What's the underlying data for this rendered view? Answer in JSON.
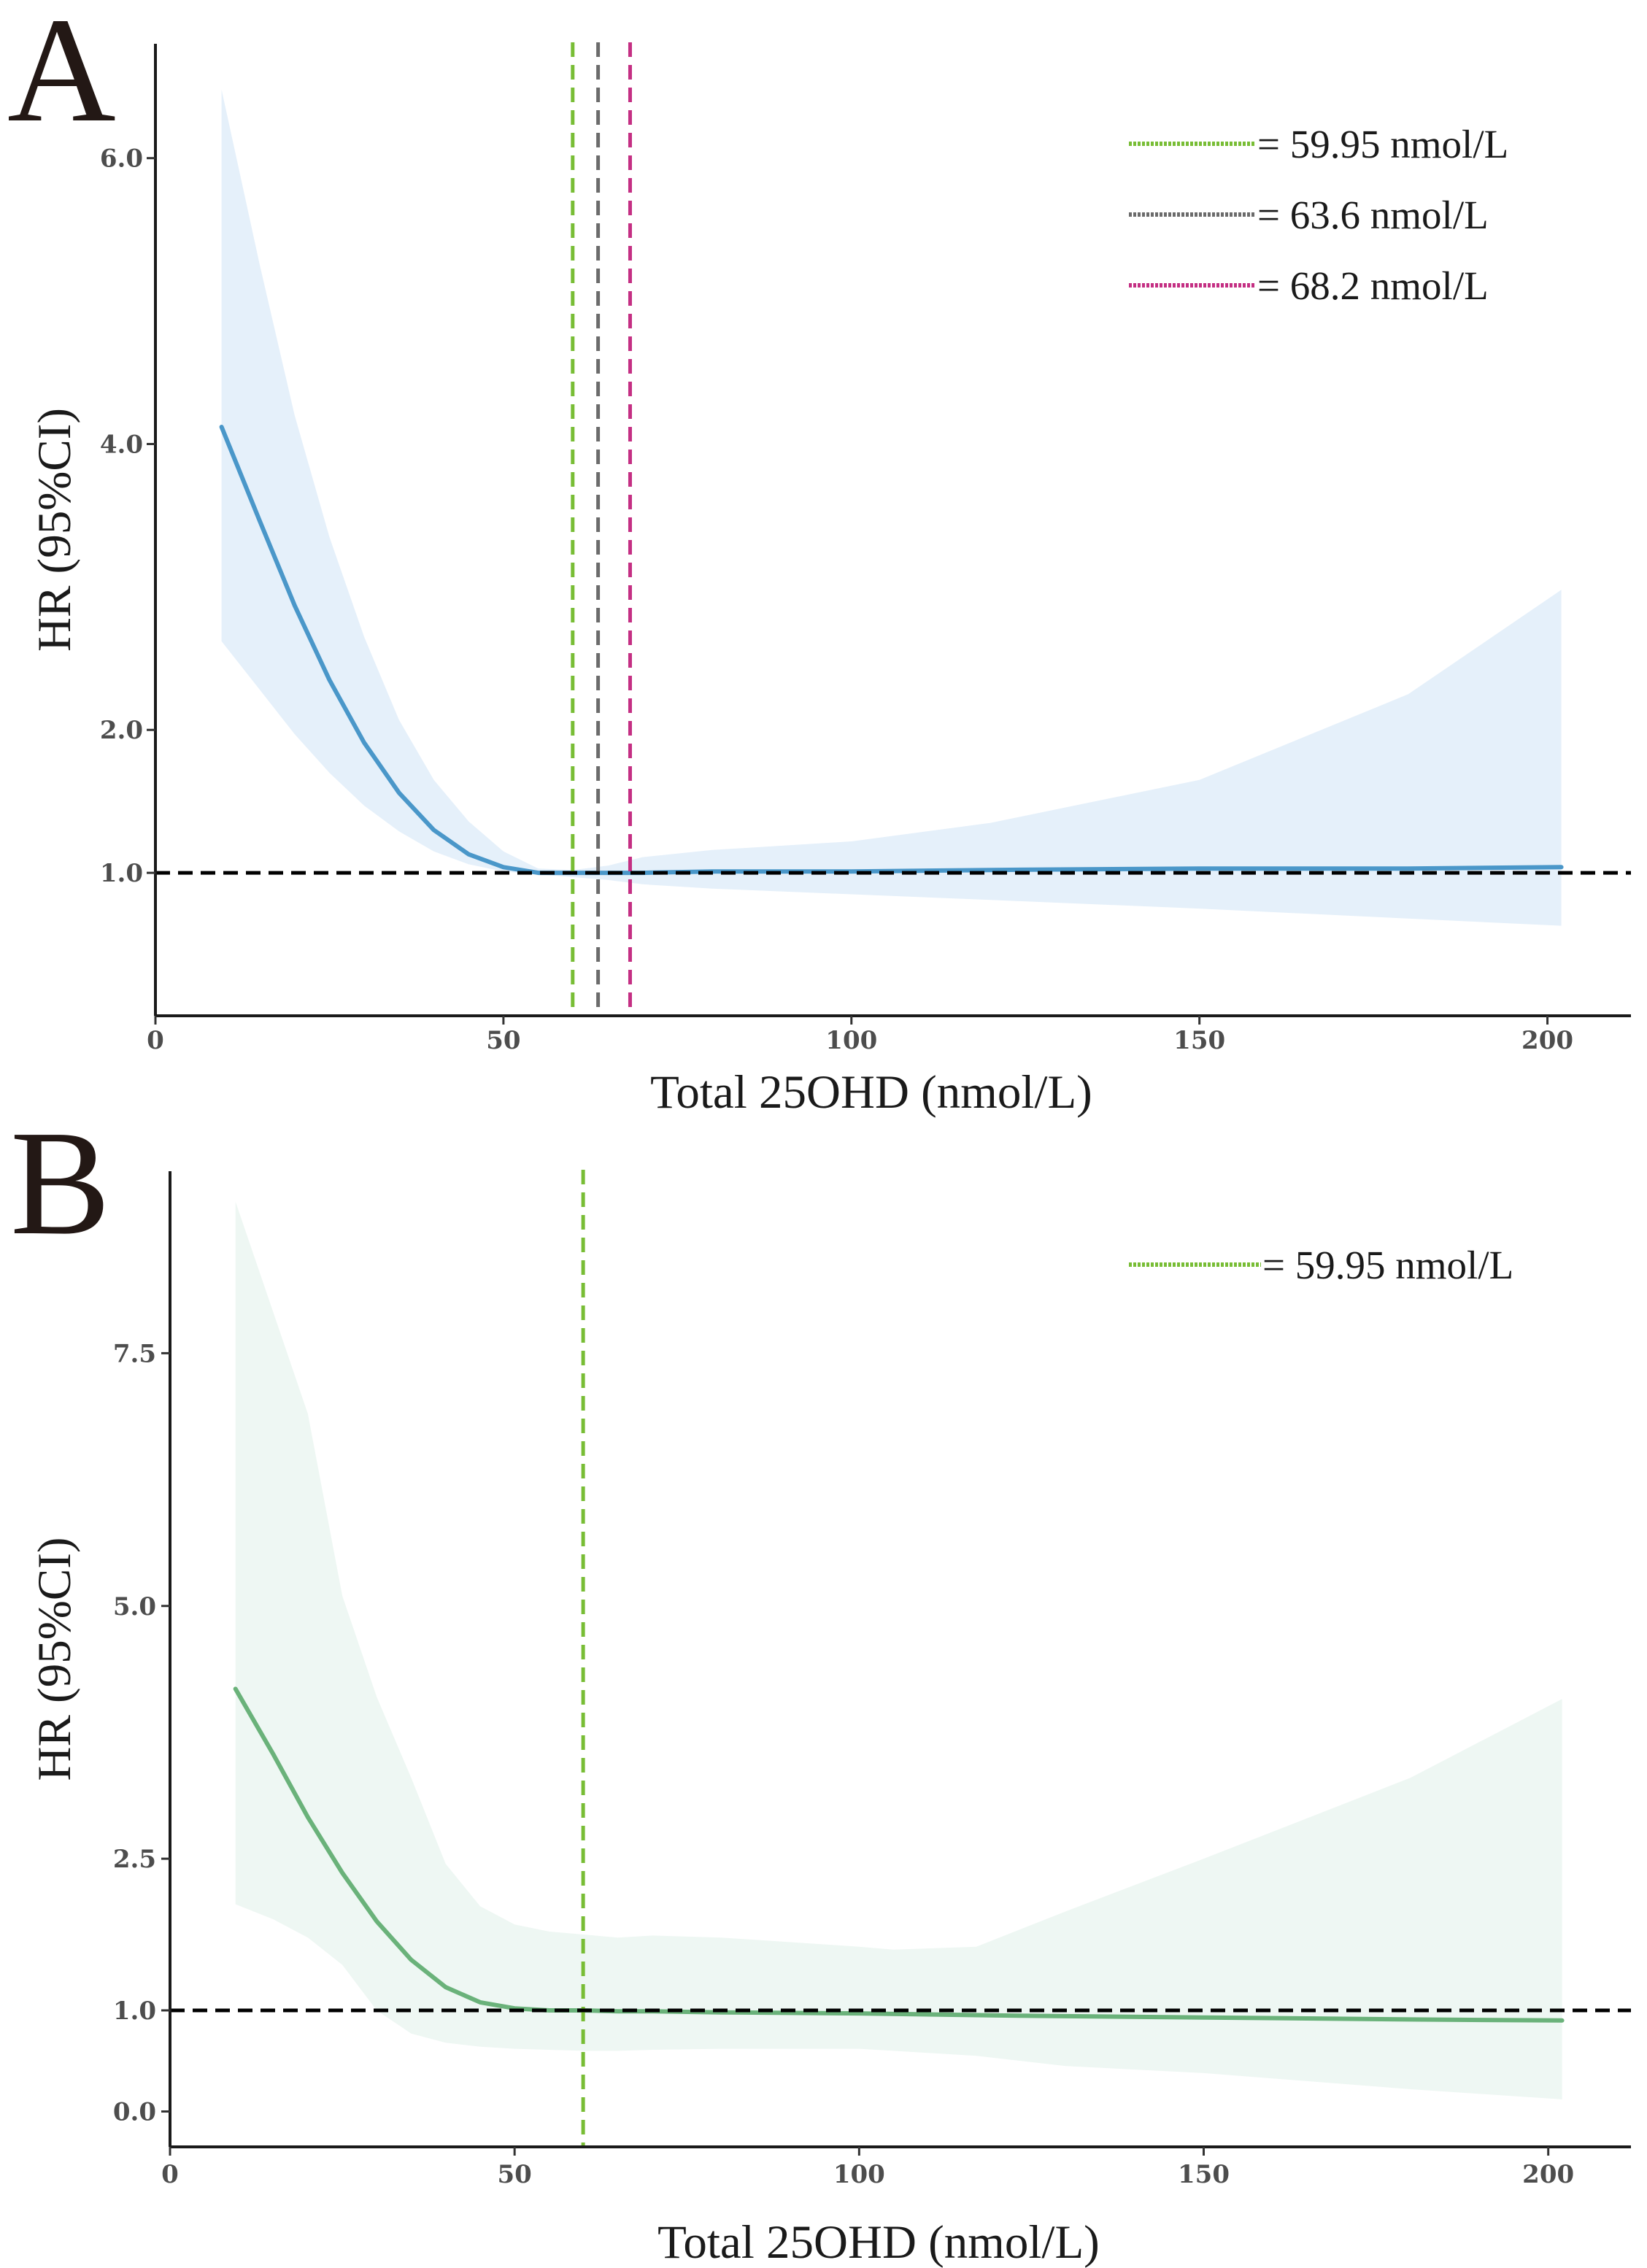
{
  "chart_data": [
    {
      "panel": "A",
      "type": "line",
      "xlabel": "Total 25OHD (nmol/L)",
      "ylabel": "HR (95%CI)",
      "xlim": [
        0,
        212
      ],
      "xticks": [
        0,
        50,
        100,
        150,
        200
      ],
      "ylim": [
        0.0,
        6.8
      ],
      "yticks": [
        1.0,
        2.0,
        4.0,
        6.0
      ],
      "ytick_labels": [
        "1.0",
        "2.0",
        "4.0",
        "6.0"
      ],
      "grid": false,
      "reference_line": {
        "y": 1.0,
        "style": "dashed",
        "color": "#000000"
      },
      "colors": {
        "curve": "#4a97c9",
        "band": "#e5f0fa"
      },
      "series": [
        {
          "name": "HR",
          "x": [
            9.5,
            15,
            20,
            25,
            30,
            35,
            40,
            45,
            50,
            55,
            60,
            65,
            70,
            80,
            100,
            120,
            150,
            180,
            202
          ],
          "y": [
            4.12,
            3.46,
            2.87,
            2.35,
            1.91,
            1.56,
            1.3,
            1.13,
            1.04,
            1.0,
            1.0,
            1.0,
            1.0,
            1.01,
            1.01,
            1.02,
            1.03,
            1.03,
            1.04
          ]
        }
      ],
      "ci_band": {
        "x": [
          9.5,
          15,
          20,
          25,
          30,
          35,
          40,
          45,
          50,
          55,
          60,
          65,
          70,
          80,
          100,
          120,
          150,
          180,
          202
        ],
        "lower": [
          2.62,
          2.28,
          1.97,
          1.7,
          1.47,
          1.29,
          1.15,
          1.06,
          1.01,
          0.99,
          0.97,
          0.95,
          0.92,
          0.89,
          0.85,
          0.81,
          0.75,
          0.68,
          0.63
        ],
        "upper": [
          6.48,
          5.25,
          4.2,
          3.35,
          2.65,
          2.07,
          1.65,
          1.36,
          1.15,
          1.03,
          1.02,
          1.05,
          1.11,
          1.16,
          1.22,
          1.35,
          1.65,
          2.25,
          2.98
        ]
      },
      "vlines": [
        {
          "x": 59.95,
          "color": "#78bd35",
          "label": "= 59.95 nmol/L"
        },
        {
          "x": 63.6,
          "color": "#6b6b6b",
          "label": "= 63.6 nmol/L"
        },
        {
          "x": 68.2,
          "color": "#c42f83",
          "label": "= 68.2 nmol/L"
        }
      ],
      "legend_position": "top-right"
    },
    {
      "panel": "B",
      "type": "line",
      "xlabel": "Total 25OHD (nmol/L)",
      "ylabel": "HR (95%CI)",
      "xlim": [
        0,
        212
      ],
      "xticks": [
        0,
        50,
        100,
        150,
        200
      ],
      "ylim": [
        -0.35,
        9.3
      ],
      "yticks": [
        0.0,
        1.0,
        2.5,
        5.0,
        7.5
      ],
      "ytick_labels": [
        "0.0",
        "1.0",
        "2.5",
        "5.0",
        "7.5"
      ],
      "grid": false,
      "reference_line": {
        "y": 1.0,
        "style": "dashed",
        "color": "#000000"
      },
      "colors": {
        "curve": "#6ab27a",
        "band": "#eef7f3"
      },
      "series": [
        {
          "name": "HR",
          "x": [
            9.5,
            15,
            20,
            25,
            30,
            35,
            40,
            45,
            50,
            55,
            60,
            65,
            70,
            80,
            100,
            120,
            150,
            180,
            202
          ],
          "y": [
            4.18,
            3.53,
            2.91,
            2.36,
            1.88,
            1.5,
            1.23,
            1.08,
            1.02,
            1.0,
            1.0,
            0.99,
            0.99,
            0.98,
            0.97,
            0.95,
            0.93,
            0.91,
            0.9
          ]
        }
      ],
      "ci_band": {
        "x": [
          9.5,
          15,
          20,
          25,
          30,
          35,
          40,
          45,
          50,
          55,
          60,
          65,
          70,
          80,
          100,
          105,
          117,
          130,
          150,
          180,
          202
        ],
        "lower": [
          2.05,
          1.9,
          1.72,
          1.45,
          1.0,
          0.77,
          0.68,
          0.64,
          0.62,
          0.61,
          0.6,
          0.6,
          0.61,
          0.62,
          0.62,
          0.6,
          0.55,
          0.45,
          0.38,
          0.22,
          0.12
        ],
        "upper": [
          9.0,
          7.9,
          6.9,
          5.1,
          4.1,
          3.3,
          2.45,
          2.03,
          1.85,
          1.78,
          1.75,
          1.72,
          1.74,
          1.72,
          1.63,
          1.6,
          1.63,
          1.98,
          2.5,
          3.3,
          4.08
        ]
      },
      "vlines": [
        {
          "x": 59.95,
          "color": "#78bd35",
          "label": "= 59.95 nmol/L"
        }
      ],
      "legend_position": "top-right"
    }
  ]
}
